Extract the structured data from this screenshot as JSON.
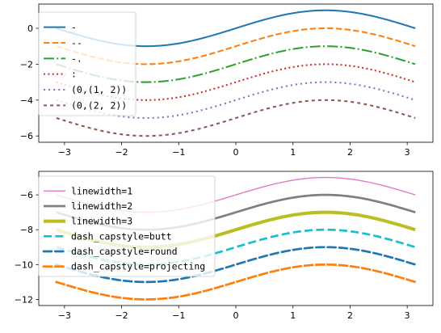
{
  "chart_data": [
    {
      "type": "line",
      "title": "",
      "xlabel": "",
      "ylabel": "",
      "xlim": [
        -3.45,
        3.45
      ],
      "ylim": [
        -6.35,
        1.35
      ],
      "x_ticks": [
        "-3",
        "-2",
        "-1",
        "0",
        "1",
        "2",
        "3"
      ],
      "y_ticks": [
        "-6",
        "-4",
        "-2",
        "0"
      ],
      "legend_position": "upper-left",
      "grid": false,
      "x_range": [
        -3.14159,
        3.14159
      ],
      "function": "y = sin(x) + offset",
      "series": [
        {
          "name": "-",
          "offset": 0,
          "color": "#1f77b4",
          "linestyle": "solid",
          "linewidth": 1.5
        },
        {
          "name": "--",
          "offset": -1,
          "color": "#ff7f0e",
          "linestyle": "dashed",
          "linewidth": 1.5
        },
        {
          "name": "-.",
          "offset": -2,
          "color": "#2ca02c",
          "linestyle": "dashdot",
          "linewidth": 1.5
        },
        {
          "name": ":",
          "offset": -3,
          "color": "#d62728",
          "linestyle": "dotted",
          "linewidth": 1.5
        },
        {
          "name": "(0,(1, 2))",
          "offset": -4,
          "color": "#9467bd",
          "linestyle": "(0,(1,2))",
          "linewidth": 1.5
        },
        {
          "name": "(0,(2, 2))",
          "offset": -5,
          "color": "#8c564b",
          "linestyle": "(0,(2,2))",
          "linewidth": 1.5
        }
      ]
    },
    {
      "type": "line",
      "title": "",
      "xlabel": "",
      "ylabel": "",
      "xlim": [
        -3.45,
        3.45
      ],
      "ylim": [
        -12.35,
        -4.65
      ],
      "x_ticks": [
        "-3",
        "-2",
        "-1",
        "0",
        "1",
        "2",
        "3"
      ],
      "y_ticks": [
        "-12",
        "-10",
        "-8",
        "-6"
      ],
      "legend_position": "upper-left",
      "grid": false,
      "x_range": [
        -3.14159,
        3.14159
      ],
      "function": "y = sin(x) + offset",
      "series": [
        {
          "name": "linewidth=1",
          "offset": -6,
          "color": "#e377c2",
          "linestyle": "solid",
          "linewidth": 1,
          "capstyle": "butt"
        },
        {
          "name": "linewidth=2",
          "offset": -7,
          "color": "#7f7f7f",
          "linestyle": "solid",
          "linewidth": 2,
          "capstyle": "butt"
        },
        {
          "name": "linewidth=3",
          "offset": -8,
          "color": "#bcbd22",
          "linestyle": "solid",
          "linewidth": 3,
          "capstyle": "butt"
        },
        {
          "name": "dash_capstyle=butt",
          "offset": -9,
          "color": "#17becf",
          "linestyle": "dashed",
          "linewidth": 2,
          "capstyle": "butt"
        },
        {
          "name": "dash_capstyle=round",
          "offset": -10,
          "color": "#1f77b4",
          "linestyle": "dashed",
          "linewidth": 2,
          "capstyle": "round"
        },
        {
          "name": "dash_capstyle=projecting",
          "offset": -11,
          "color": "#ff7f0e",
          "linestyle": "dashed",
          "linewidth": 2,
          "capstyle": "square"
        }
      ]
    }
  ]
}
